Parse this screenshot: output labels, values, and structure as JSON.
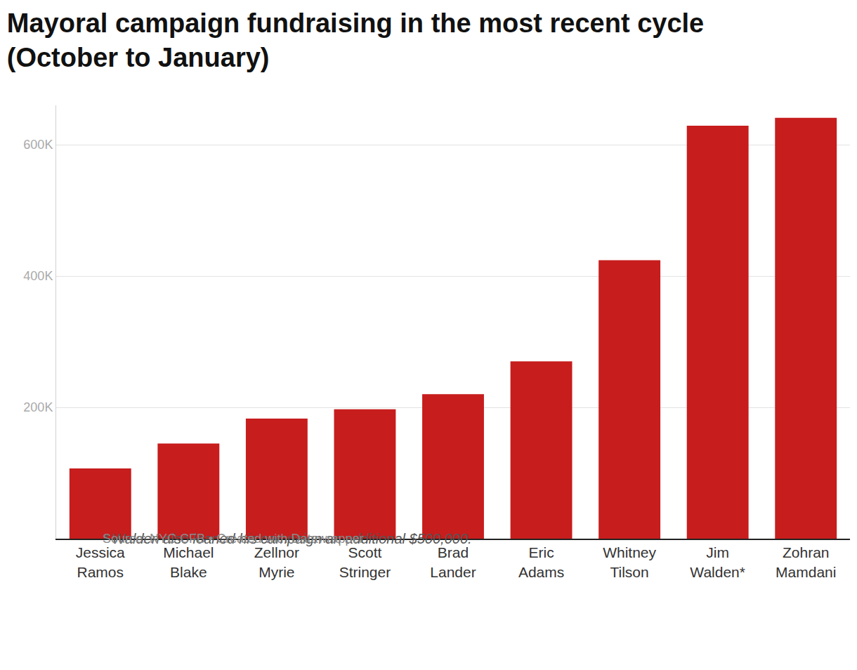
{
  "chart_data": {
    "type": "bar",
    "title": "Mayoral campaign fundraising in the most recent cycle (October to January)",
    "categories": [
      "Jessica Ramos",
      "Michael Blake",
      "Zellnor Myrie",
      "Scott Stringer",
      "Brad Lander",
      "Eric Adams",
      "Whitney Tilson",
      "Jim Walden*",
      "Zohran Mamdani"
    ],
    "values": [
      107000,
      145000,
      183000,
      197000,
      220000,
      270000,
      424000,
      629000,
      641000
    ],
    "color": "#c71d1d",
    "ylim": [
      0,
      660000
    ],
    "yticks": [
      {
        "value": 200000,
        "label": "200K"
      },
      {
        "value": 400000,
        "label": "400K"
      },
      {
        "value": 600000,
        "label": "600K"
      }
    ],
    "grid": true,
    "annotations": [
      "* Walden also loaned his campaign an additional $500,000.",
      "Source: NYC CFB • Created with Datawrapper"
    ]
  }
}
